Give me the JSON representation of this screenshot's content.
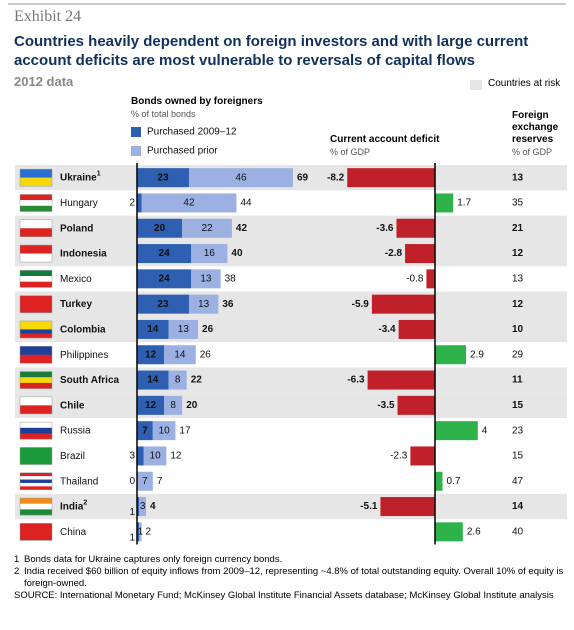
{
  "exhibit": "Exhibit 24",
  "chart_data": {
    "type": "bar",
    "title": "Countries heavily dependent on foreign investors and with large current account deficits are most vulnerable to reversals of capital flows",
    "subtitle": "2012 data",
    "risk_legend": "Countries at risk",
    "categories": [
      "Ukraine",
      "Hungary",
      "Poland",
      "Indonesia",
      "Mexico",
      "Turkey",
      "Colombia",
      "Philippines",
      "South Africa",
      "Chile",
      "Russia",
      "Brazil",
      "Thailand",
      "India",
      "China"
    ],
    "category_notes": [
      "1",
      null,
      null,
      null,
      null,
      null,
      null,
      null,
      null,
      null,
      null,
      null,
      null,
      "2",
      null
    ],
    "at_risk": [
      true,
      false,
      true,
      true,
      false,
      true,
      true,
      false,
      true,
      true,
      false,
      false,
      false,
      true,
      false
    ],
    "bonds": {
      "label": "Bonds owned by foreigners",
      "unit": "% of total bonds",
      "series": [
        {
          "name": "Purchased 2009–12",
          "color": "#2e5fb0",
          "values": [
            23,
            2,
            20,
            24,
            24,
            23,
            14,
            12,
            14,
            12,
            7,
            3,
            0,
            1,
            1
          ]
        },
        {
          "name": "Purchased prior",
          "color": "#9cb0e2",
          "values": [
            46,
            42,
            22,
            16,
            13,
            13,
            13,
            14,
            8,
            8,
            10,
            10,
            7,
            3,
            1
          ]
        }
      ],
      "totals": [
        69,
        44,
        42,
        40,
        38,
        36,
        26,
        26,
        22,
        20,
        17,
        12,
        7,
        4,
        2
      ]
    },
    "current_account": {
      "label": "Current account deficit",
      "unit": "% of GDP",
      "color_negative": "#c0202a",
      "color_positive": "#2db34a",
      "values": [
        -8.2,
        1.7,
        -3.6,
        -2.8,
        -0.8,
        -5.9,
        -3.4,
        2.9,
        -6.3,
        -3.5,
        4.0,
        -2.3,
        0.7,
        -5.1,
        2.6
      ]
    },
    "reserves": {
      "label": "Foreign exchange reserves",
      "unit": "% of GDP",
      "values": [
        13,
        35,
        21,
        12,
        13,
        12,
        10,
        29,
        11,
        15,
        23,
        15,
        47,
        14,
        40
      ]
    }
  },
  "notes": [
    {
      "marker": "1",
      "text": "Bonds data for Ukraine captures only foreign currency bonds."
    },
    {
      "marker": "2",
      "text": "India received $60 billion of equity inflows from 2009–12, representing ~4.8% of total outstanding equity. Overall 10% of equity is foreign-owned."
    }
  ],
  "source": "SOURCE: International Monetary Fund; McKinsey Global Institute Financial Assets database; McKinsey Global Institute analysis"
}
